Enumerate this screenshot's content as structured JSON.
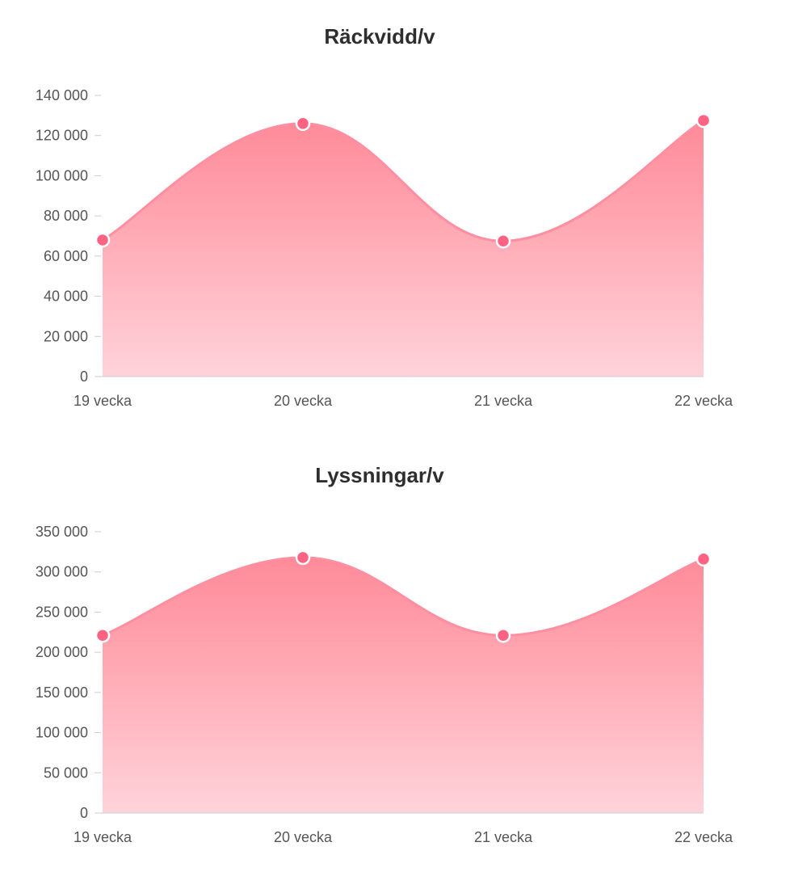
{
  "colors": {
    "line": "#ff8fa0",
    "point": "#ff6384",
    "point_border": "#ffffff",
    "fill_top": "#ff8a98",
    "fill_bottom": "#ffd3da",
    "axis": "#cccccc",
    "tick_text": "#555555",
    "title_text": "#2e2e2e"
  },
  "chart_data": [
    {
      "type": "area",
      "title": "Räckvidd/v",
      "categories": [
        "19 vecka",
        "20 vecka",
        "21 vecka",
        "22 vecka"
      ],
      "values": [
        68000,
        126000,
        67500,
        127500
      ],
      "ylim": [
        0,
        140000
      ],
      "yticks": [
        0,
        20000,
        40000,
        60000,
        80000,
        100000,
        120000,
        140000
      ],
      "ytick_labels": [
        "0",
        "20 000",
        "40 000",
        "60 000",
        "80 000",
        "100 000",
        "120 000",
        "140 000"
      ],
      "grid": false,
      "legend": "none"
    },
    {
      "type": "area",
      "title": "Lyssningar/v",
      "categories": [
        "19 vecka",
        "20 vecka",
        "21 vecka",
        "22 vecka"
      ],
      "values": [
        221000,
        318000,
        221000,
        316000
      ],
      "ylim": [
        0,
        350000
      ],
      "yticks": [
        0,
        50000,
        100000,
        150000,
        200000,
        250000,
        300000,
        350000
      ],
      "ytick_labels": [
        "0",
        "50 000",
        "100 000",
        "150 000",
        "200 000",
        "250 000",
        "300 000",
        "350 000"
      ],
      "grid": false,
      "legend": "none"
    }
  ]
}
